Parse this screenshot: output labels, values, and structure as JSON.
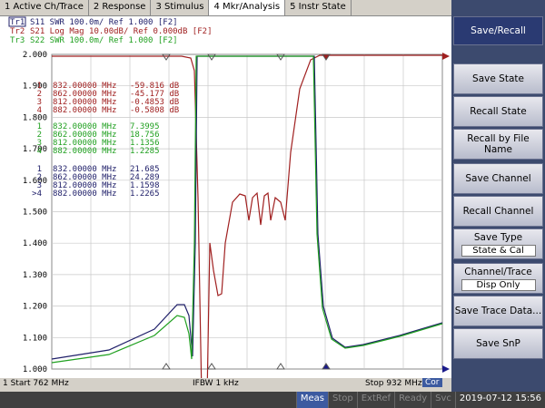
{
  "menu": [
    "1 Active Ch/Trace",
    "2 Response",
    "3 Stimulus",
    "4 Mkr/Analysis",
    "5 Instr State"
  ],
  "traces": [
    {
      "id": "Tr1",
      "text": "S11 SWR 100.0m/ Ref 1.000 [F2]"
    },
    {
      "id": "Tr2",
      "text": "S21 Log Mag 10.00dB/ Ref 0.000dB [F2]"
    },
    {
      "id": "Tr3",
      "text": "S22 SWR 100.0m/ Ref 1.000 [F2]"
    }
  ],
  "y_axis_labels": [
    "2.000",
    "1.900",
    "1.800",
    "1.700",
    "1.600",
    "1.500",
    "1.400",
    "1.300",
    "1.200",
    "1.100",
    "1.000"
  ],
  "marker_tables": [
    [
      [
        "1",
        "832.00000 MHz",
        "-59.816 dB"
      ],
      [
        "2",
        "862.00000 MHz",
        "-45.177 dB"
      ],
      [
        "3",
        "812.00000 MHz",
        "-0.4853 dB"
      ],
      [
        "4",
        "882.00000 MHz",
        "-0.5808 dB"
      ]
    ],
    [
      [
        "1",
        "832.00000 MHz",
        "7.3995"
      ],
      [
        "2",
        "862.00000 MHz",
        "18.756"
      ],
      [
        "3",
        "812.00000 MHz",
        "1.1356"
      ],
      [
        "4",
        "882.00000 MHz",
        "1.2285"
      ]
    ],
    [
      [
        "1",
        "832.00000 MHz",
        "21.685"
      ],
      [
        "2",
        "862.00000 MHz",
        "24.289"
      ],
      [
        "3",
        "812.00000 MHz",
        "1.1598"
      ],
      [
        ">4",
        "882.00000 MHz",
        "1.2265"
      ]
    ]
  ],
  "status": {
    "start": "1  Start 762 MHz",
    "ifbw": "IFBW 1 kHz",
    "stop": "Stop 932 MHz",
    "cor": "Cor"
  },
  "bottom_bar": [
    "Meas",
    "Stop",
    "ExtRef",
    "Ready",
    "Svc",
    "2019-07-12 15:56"
  ],
  "softkeys": {
    "title": "Save/Recall",
    "buttons": [
      {
        "label": "Save State"
      },
      {
        "label": "Recall State"
      },
      {
        "label": "Recall by File Name"
      },
      {
        "label": "Save Channel"
      },
      {
        "label": "Recall Channel"
      },
      {
        "label": "Save Type",
        "value": "State & Cal"
      },
      {
        "label": "Channel/Trace",
        "value": "Disp Only"
      },
      {
        "label": "Save Trace Data..."
      },
      {
        "label": "Save SnP"
      }
    ]
  }
}
